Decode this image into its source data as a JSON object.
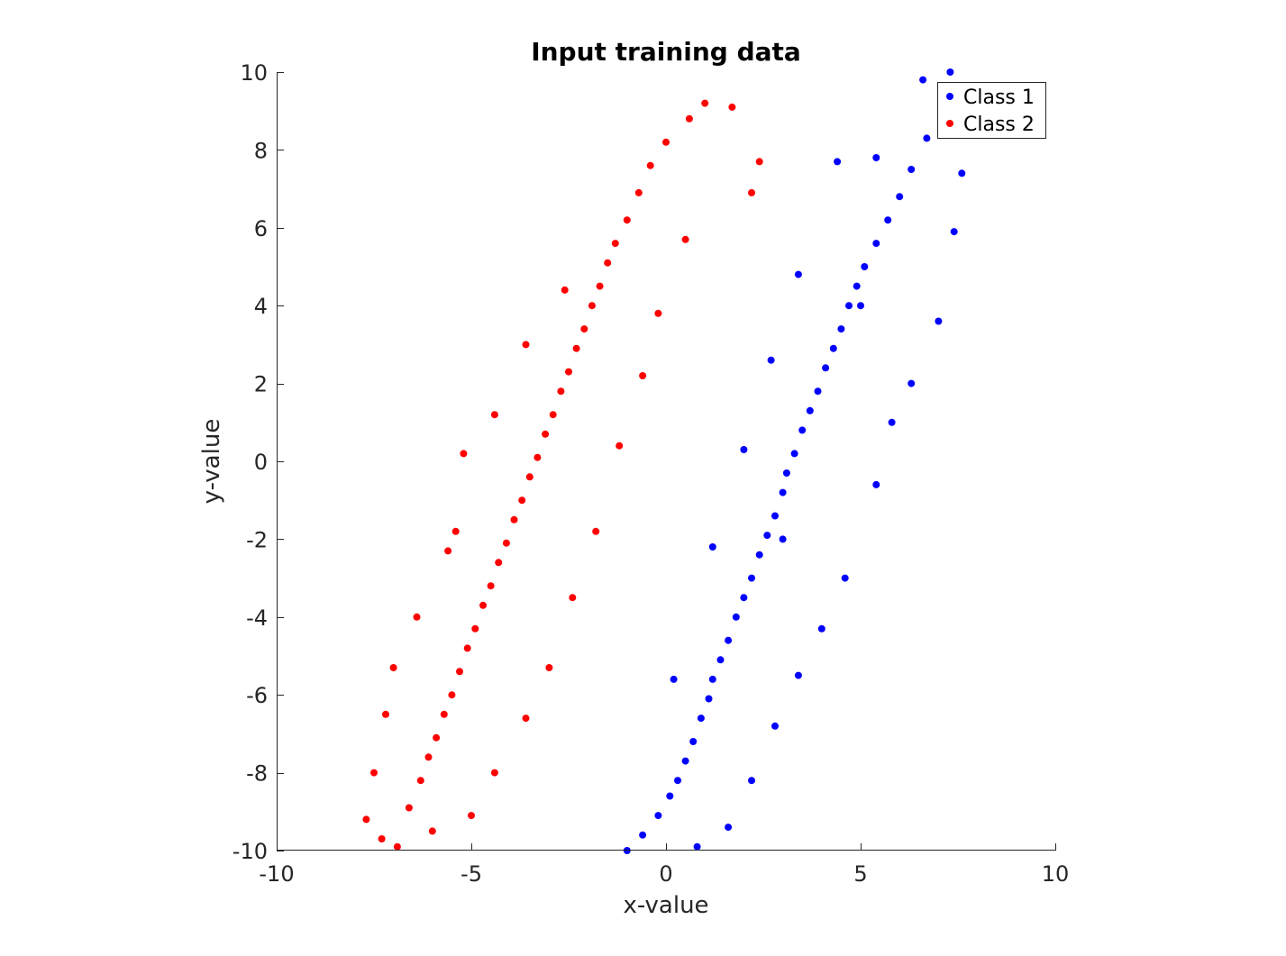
{
  "chart_data": {
    "type": "scatter",
    "title": "Input training data",
    "xlabel": "x-value",
    "ylabel": "y-value",
    "xlim": [
      -10,
      10
    ],
    "ylim": [
      -10,
      10
    ],
    "xticks": [
      -10,
      -5,
      0,
      5,
      10
    ],
    "yticks": [
      -10,
      -8,
      -6,
      -4,
      -2,
      0,
      2,
      4,
      6,
      8,
      10
    ],
    "xtick_labels": [
      "-10",
      "-5",
      "0",
      "5",
      "10"
    ],
    "ytick_labels": [
      "-10",
      "-8",
      "-6",
      "-4",
      "-2",
      "0",
      "2",
      "4",
      "6",
      "8",
      "10"
    ],
    "grid": false,
    "legend": "top-right",
    "series": [
      {
        "name": "Class 1",
        "color": "#0000ff",
        "points": [
          [
            -1.0,
            -10.0
          ],
          [
            -0.6,
            -9.6
          ],
          [
            -0.2,
            -9.1
          ],
          [
            0.1,
            -8.6
          ],
          [
            0.3,
            -8.2
          ],
          [
            0.5,
            -7.7
          ],
          [
            0.7,
            -7.2
          ],
          [
            0.9,
            -6.6
          ],
          [
            1.1,
            -6.1
          ],
          [
            1.2,
            -5.6
          ],
          [
            1.4,
            -5.1
          ],
          [
            1.6,
            -4.6
          ],
          [
            1.8,
            -4.0
          ],
          [
            2.0,
            -3.5
          ],
          [
            2.2,
            -3.0
          ],
          [
            2.4,
            -2.4
          ],
          [
            2.6,
            -1.9
          ],
          [
            2.8,
            -1.4
          ],
          [
            3.0,
            -0.8
          ],
          [
            3.1,
            -0.3
          ],
          [
            3.3,
            0.2
          ],
          [
            3.5,
            0.8
          ],
          [
            3.7,
            1.3
          ],
          [
            3.9,
            1.8
          ],
          [
            4.1,
            2.4
          ],
          [
            4.3,
            2.9
          ],
          [
            4.5,
            3.4
          ],
          [
            4.7,
            4.0
          ],
          [
            4.9,
            4.5
          ],
          [
            5.1,
            5.0
          ],
          [
            5.4,
            5.6
          ],
          [
            5.7,
            6.2
          ],
          [
            6.0,
            6.8
          ],
          [
            6.3,
            7.5
          ],
          [
            6.7,
            8.3
          ],
          [
            7.1,
            9.2
          ],
          [
            7.3,
            10.0
          ],
          [
            7.6,
            7.4
          ],
          [
            7.4,
            5.9
          ],
          [
            7.0,
            3.6
          ],
          [
            6.3,
            2.0
          ],
          [
            5.8,
            1.0
          ],
          [
            5.4,
            -0.6
          ],
          [
            4.6,
            -3.0
          ],
          [
            4.0,
            -4.3
          ],
          [
            3.4,
            -5.5
          ],
          [
            2.8,
            -6.8
          ],
          [
            2.2,
            -8.2
          ],
          [
            1.6,
            -9.4
          ],
          [
            0.8,
            -9.9
          ],
          [
            0.2,
            -5.6
          ],
          [
            1.2,
            -2.2
          ],
          [
            2.0,
            0.3
          ],
          [
            2.7,
            2.6
          ],
          [
            3.4,
            4.8
          ],
          [
            4.4,
            7.7
          ],
          [
            5.4,
            7.8
          ],
          [
            6.6,
            9.8
          ],
          [
            5.0,
            4.0
          ],
          [
            3.0,
            -2.0
          ]
        ]
      },
      {
        "name": "Class 2",
        "color": "#ff0000",
        "points": [
          [
            -7.7,
            -9.2
          ],
          [
            -7.3,
            -9.7
          ],
          [
            -6.9,
            -9.9
          ],
          [
            -6.6,
            -8.9
          ],
          [
            -6.3,
            -8.2
          ],
          [
            -6.1,
            -7.6
          ],
          [
            -5.9,
            -7.1
          ],
          [
            -5.7,
            -6.5
          ],
          [
            -5.5,
            -6.0
          ],
          [
            -5.3,
            -5.4
          ],
          [
            -5.1,
            -4.8
          ],
          [
            -4.9,
            -4.3
          ],
          [
            -4.7,
            -3.7
          ],
          [
            -4.5,
            -3.2
          ],
          [
            -4.3,
            -2.6
          ],
          [
            -4.1,
            -2.1
          ],
          [
            -3.9,
            -1.5
          ],
          [
            -3.7,
            -1.0
          ],
          [
            -3.5,
            -0.4
          ],
          [
            -3.3,
            0.1
          ],
          [
            -3.1,
            0.7
          ],
          [
            -2.9,
            1.2
          ],
          [
            -2.7,
            1.8
          ],
          [
            -2.5,
            2.3
          ],
          [
            -2.3,
            2.9
          ],
          [
            -2.1,
            3.4
          ],
          [
            -1.9,
            4.0
          ],
          [
            -1.7,
            4.5
          ],
          [
            -1.5,
            5.1
          ],
          [
            -1.3,
            5.6
          ],
          [
            -1.0,
            6.2
          ],
          [
            -0.7,
            6.9
          ],
          [
            -0.4,
            7.6
          ],
          [
            0.0,
            8.2
          ],
          [
            0.6,
            8.8
          ],
          [
            1.0,
            9.2
          ],
          [
            1.7,
            9.1
          ],
          [
            2.2,
            6.9
          ],
          [
            2.4,
            7.7
          ],
          [
            -5.2,
            0.2
          ],
          [
            -5.6,
            -2.3
          ],
          [
            -6.4,
            -4.0
          ],
          [
            -7.0,
            -5.3
          ],
          [
            -7.2,
            -6.5
          ],
          [
            -7.5,
            -8.0
          ],
          [
            -6.0,
            -9.5
          ],
          [
            -5.0,
            -9.1
          ],
          [
            -4.4,
            -8.0
          ],
          [
            -3.6,
            -6.6
          ],
          [
            -3.0,
            -5.3
          ],
          [
            -2.4,
            -3.5
          ],
          [
            -1.8,
            -1.8
          ],
          [
            -1.2,
            0.4
          ],
          [
            -0.6,
            2.2
          ],
          [
            -0.2,
            3.8
          ],
          [
            0.5,
            5.7
          ],
          [
            -2.6,
            4.4
          ],
          [
            -3.6,
            3.0
          ],
          [
            -4.4,
            1.2
          ],
          [
            -5.4,
            -1.8
          ]
        ]
      }
    ]
  }
}
